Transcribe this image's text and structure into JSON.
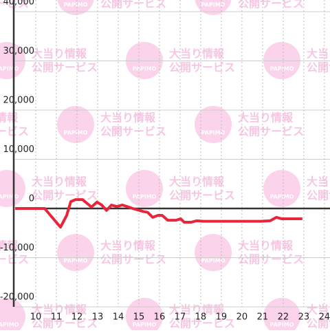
{
  "chart_data": {
    "type": "line",
    "watermark": {
      "logo": "PAPIMO",
      "lines": [
        "大当り情報",
        "公開サービス"
      ]
    },
    "x": [
      9.0,
      10.43,
      11.2,
      11.5,
      11.7,
      11.93,
      12.27,
      12.7,
      12.97,
      13.2,
      13.43,
      13.67,
      13.93,
      14.2,
      14.43,
      14.7,
      15.2,
      15.43,
      15.67,
      15.93,
      16.13,
      16.4,
      16.8,
      17.03,
      17.2,
      17.53,
      17.8,
      18.13,
      20.93,
      21.37,
      21.67,
      21.93,
      22.93
    ],
    "series": [
      {
        "color": "#e8253a",
        "values": [
          0,
          0,
          -3800,
          -1400,
          1400,
          1800,
          1800,
          300,
          1300,
          700,
          -400,
          700,
          400,
          700,
          400,
          0,
          -600,
          -800,
          -1800,
          -1400,
          -1400,
          -2400,
          -2400,
          -2100,
          -2800,
          -2800,
          -2500,
          -2600,
          -2600,
          -2500,
          -1800,
          -2100,
          -2100
        ]
      }
    ],
    "xlim": [
      9,
      24.27
    ],
    "xticks": [
      10,
      11,
      12,
      13,
      14,
      15,
      16,
      17,
      18,
      19,
      20,
      21,
      22,
      23,
      24
    ],
    "ylim": [
      -20000,
      40000
    ],
    "yticks": [
      {
        "value": -20000,
        "label": "-20,000"
      },
      {
        "value": -10000,
        "label": "-10,000"
      },
      0,
      {
        "value": 10000,
        "label": "10,000"
      },
      {
        "value": 20000,
        "label": "20,000"
      },
      {
        "value": 30000,
        "label": "30,000"
      },
      {
        "value": 40000,
        "label": "40,000"
      }
    ],
    "grid": true
  }
}
